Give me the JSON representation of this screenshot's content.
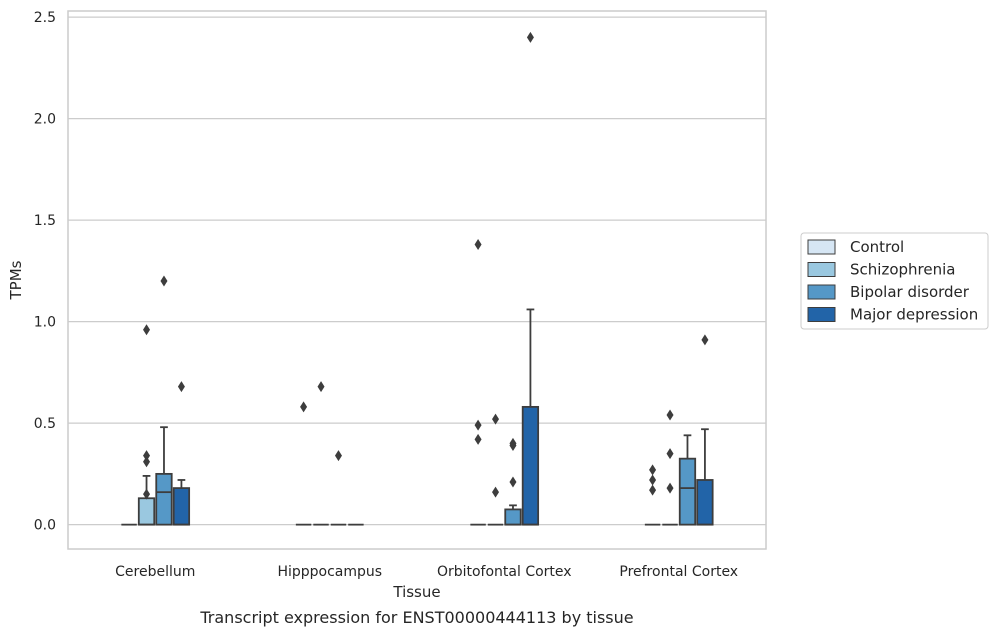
{
  "chart_data": {
    "type": "box",
    "title": "",
    "caption": "Transcript expression for ENST00000444113 by tissue",
    "xlabel": "Tissue",
    "ylabel": "TPMs",
    "ylim": [
      -0.12,
      2.53
    ],
    "yticks": [
      0.0,
      0.5,
      1.0,
      1.5,
      2.0,
      2.5
    ],
    "ytick_labels": [
      "0.0",
      "0.5",
      "1.0",
      "1.5",
      "2.0",
      "2.5"
    ],
    "grid": "horizontal",
    "legend_position": "right",
    "categories": [
      "Cerebellum",
      "Hipppocampus",
      "Orbitofontal Cortex",
      "Prefrontal Cortex"
    ],
    "series": [
      {
        "name": "Control",
        "color": "#d6e6f4",
        "boxes": [
          {
            "q1": 0,
            "median": 0,
            "q3": 0,
            "whislo": 0,
            "whishi": 0,
            "fliers": []
          },
          {
            "q1": 0,
            "median": 0,
            "q3": 0,
            "whislo": 0,
            "whishi": 0,
            "fliers": [
              0.58
            ]
          },
          {
            "q1": 0,
            "median": 0,
            "q3": 0,
            "whislo": 0,
            "whishi": 0,
            "fliers": [
              1.38,
              0.49,
              0.42
            ]
          },
          {
            "q1": 0,
            "median": 0,
            "q3": 0,
            "whislo": 0,
            "whishi": 0,
            "fliers": [
              0.27,
              0.22,
              0.17
            ]
          }
        ]
      },
      {
        "name": "Schizophrenia",
        "color": "#9ac8e0",
        "boxes": [
          {
            "q1": 0,
            "median": 0,
            "q3": 0.13,
            "whislo": 0,
            "whishi": 0.24,
            "fliers": [
              0.96,
              0.34,
              0.31,
              0.15
            ]
          },
          {
            "q1": 0,
            "median": 0,
            "q3": 0,
            "whislo": 0,
            "whishi": 0,
            "fliers": [
              0.68
            ]
          },
          {
            "q1": 0,
            "median": 0,
            "q3": 0,
            "whislo": 0,
            "whishi": 0,
            "fliers": [
              0.52,
              0.16
            ]
          },
          {
            "q1": 0,
            "median": 0,
            "q3": 0,
            "whislo": 0,
            "whishi": 0,
            "fliers": [
              0.54,
              0.35,
              0.18
            ]
          }
        ]
      },
      {
        "name": "Bipolar disorder",
        "color": "#5598c7",
        "boxes": [
          {
            "q1": 0,
            "median": 0.16,
            "q3": 0.25,
            "whislo": 0,
            "whishi": 0.48,
            "fliers": [
              1.2
            ]
          },
          {
            "q1": 0,
            "median": 0,
            "q3": 0,
            "whislo": 0,
            "whishi": 0,
            "fliers": [
              0.34
            ]
          },
          {
            "q1": 0,
            "median": 0,
            "q3": 0.075,
            "whislo": 0,
            "whishi": 0.095,
            "fliers": [
              0.4,
              0.39,
              0.21
            ]
          },
          {
            "q1": 0,
            "median": 0.18,
            "q3": 0.325,
            "whislo": 0,
            "whishi": 0.44,
            "fliers": []
          }
        ]
      },
      {
        "name": "Major depression",
        "color": "#2264a8",
        "boxes": [
          {
            "q1": 0,
            "median": 0,
            "q3": 0.18,
            "whislo": 0,
            "whishi": 0.22,
            "fliers": [
              0.68
            ]
          },
          {
            "q1": 0,
            "median": 0,
            "q3": 0,
            "whislo": 0,
            "whishi": 0,
            "fliers": []
          },
          {
            "q1": 0,
            "median": 0,
            "q3": 0.58,
            "whislo": 0,
            "whishi": 1.06,
            "fliers": [
              2.4
            ]
          },
          {
            "q1": 0,
            "median": 0,
            "q3": 0.22,
            "whislo": 0,
            "whishi": 0.47,
            "fliers": [
              0.91
            ]
          }
        ]
      }
    ]
  }
}
